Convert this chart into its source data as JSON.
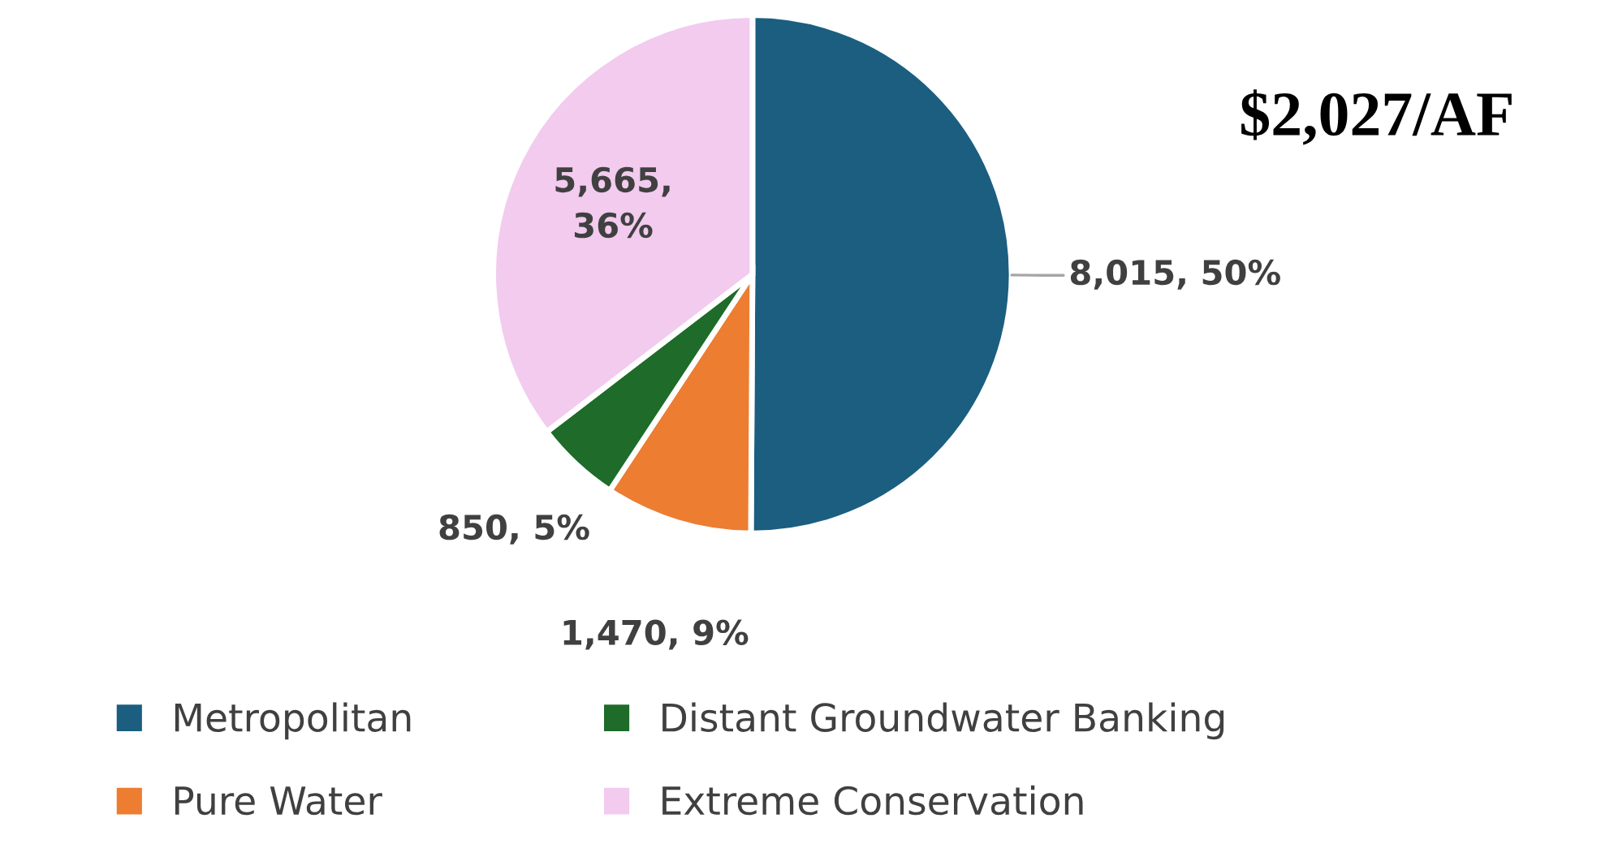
{
  "chart_data": {
    "type": "pie",
    "categories": [
      "Metropolitan",
      "Pure Water",
      "Distant Groundwater Banking",
      "Extreme Conservation"
    ],
    "values": [
      8015,
      1470,
      850,
      5665
    ],
    "colors": [
      "#1b5e80",
      "#ed7d31",
      "#1e6b2a",
      "#f2cbee"
    ],
    "value_labels": [
      "8,015, 50%",
      "1,470, 9%",
      "850, 5%",
      "5,665,\n36%"
    ],
    "annotations": [
      "$2,027/AF"
    ],
    "legend": "bottom"
  }
}
